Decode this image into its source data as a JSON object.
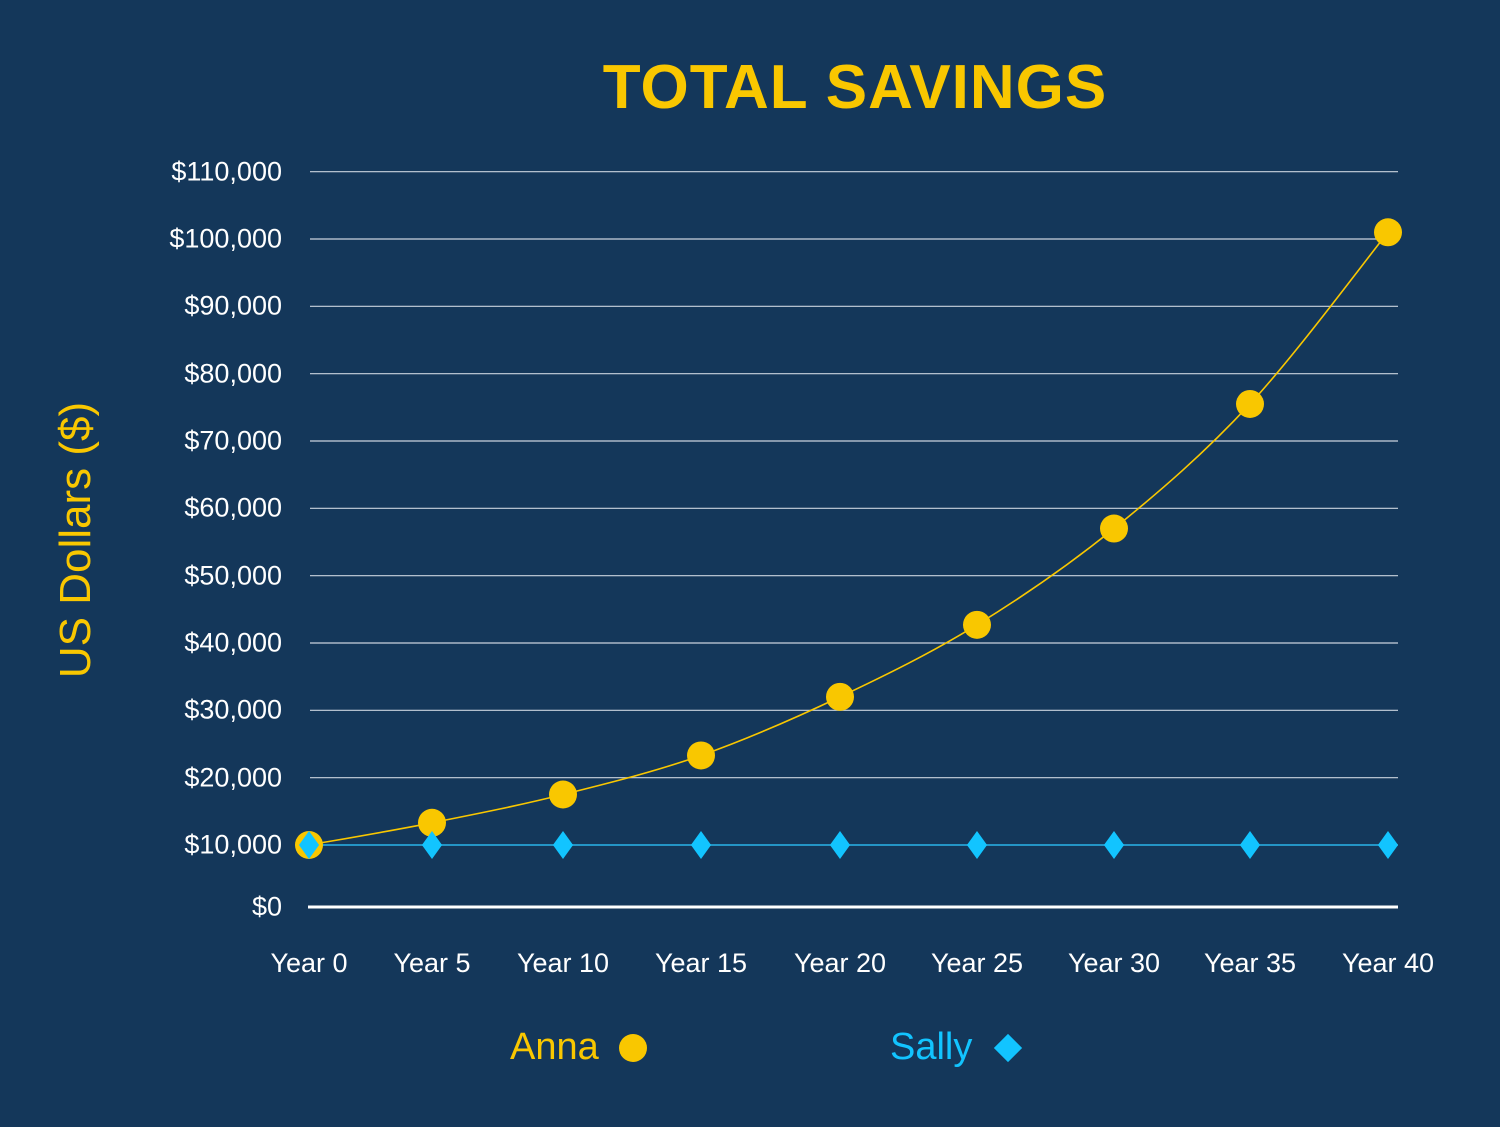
{
  "chart_data": {
    "type": "line",
    "title": "TOTAL SAVINGS",
    "xlabel": "",
    "ylabel": "US Dollars ($)",
    "categories": [
      "Year 0",
      "Year 5",
      "Year 10",
      "Year 15",
      "Year 20",
      "Year 25",
      "Year 30",
      "Year 35",
      "Year 40"
    ],
    "series": [
      {
        "name": "Anna",
        "marker": "circle",
        "color": "#f9c700",
        "values": [
          10000,
          13300,
          17500,
          23300,
          32000,
          42700,
          57000,
          75500,
          101000
        ]
      },
      {
        "name": "Sally",
        "marker": "diamond",
        "color": "#12c4ff",
        "values": [
          10000,
          10000,
          10000,
          10000,
          10000,
          10000,
          10000,
          10000,
          10000
        ]
      }
    ],
    "yticks": [
      "$0",
      "$10,000",
      "$20,000",
      "$30,000",
      "$40,000",
      "$50,000",
      "$60,000",
      "$70,000",
      "$80,000",
      "$90,000",
      "$100,000",
      "$110,000"
    ],
    "ylim": [
      0,
      110000
    ],
    "grid": true,
    "legend_position": "bottom"
  },
  "colors": {
    "background": "#14375a",
    "accent": "#f9c700",
    "secondary": "#12c4ff",
    "grid": "#ffffff"
  }
}
